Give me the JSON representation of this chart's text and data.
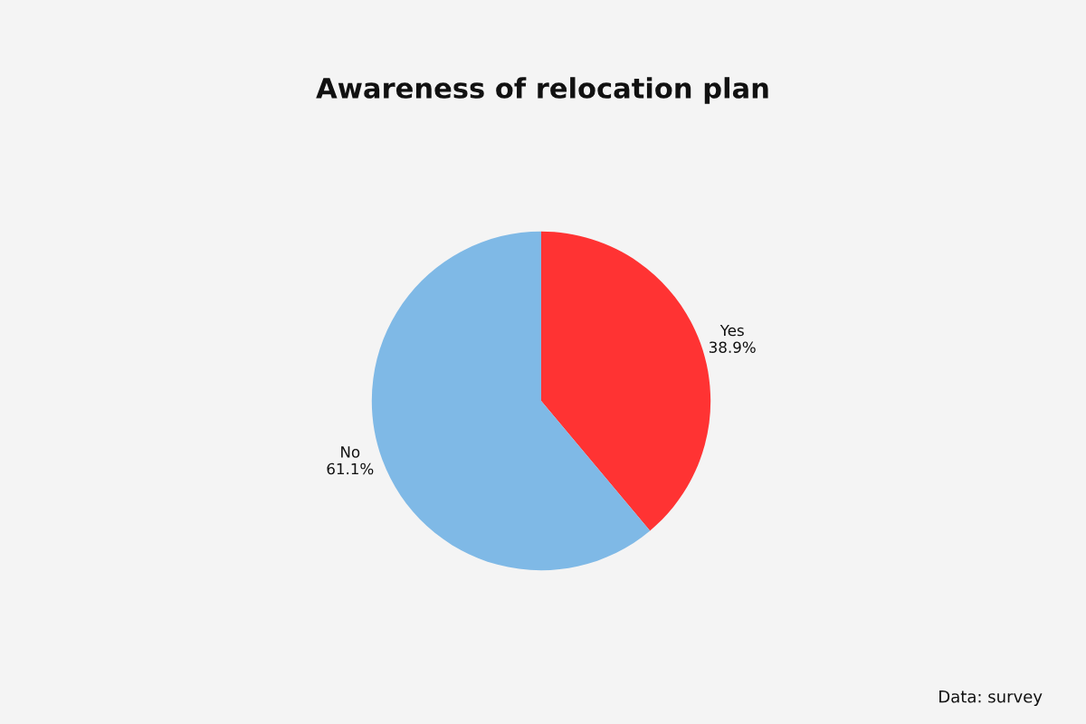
{
  "chart_data": {
    "type": "pie",
    "title": "Awareness of relocation plan",
    "categories": [
      "Yes",
      "No"
    ],
    "values": [
      38.9,
      61.1
    ],
    "value_labels": [
      "38.9%",
      "61.1%"
    ],
    "colors": [
      "#ff3333",
      "#7fb9e6"
    ],
    "legend": false,
    "annotations": [
      "Data: survey"
    ]
  }
}
